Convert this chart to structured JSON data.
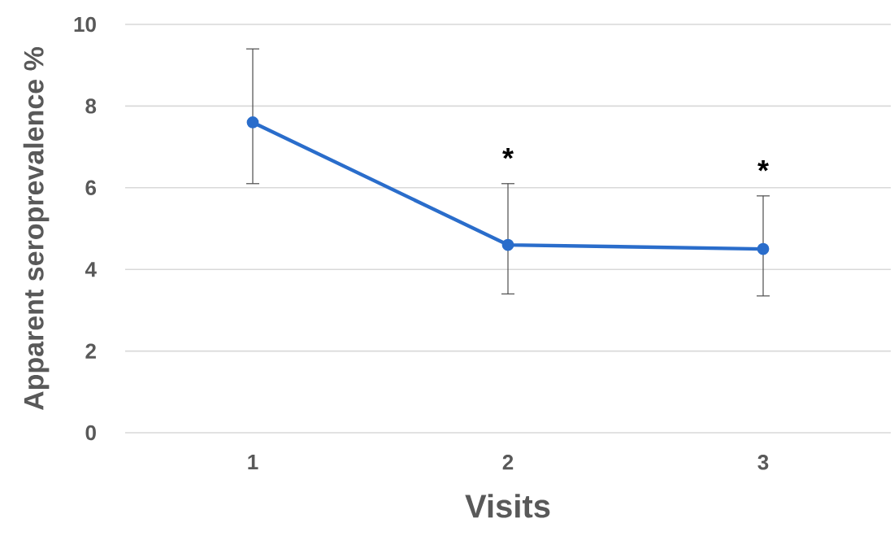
{
  "chart_data": {
    "type": "line",
    "xlabel": "Visits",
    "ylabel": "Apparent seroprevalence %",
    "categories": [
      "1",
      "2",
      "3"
    ],
    "series": [
      {
        "color": "#2a6dcb",
        "values": [
          7.6,
          4.6,
          4.5
        ],
        "errors": [
          [
            6.1,
            9.4
          ],
          [
            3.4,
            6.1
          ],
          [
            3.35,
            5.8
          ]
        ]
      }
    ],
    "ylim": [
      0,
      10
    ],
    "yticks": [
      0,
      2,
      4,
      6,
      8,
      10
    ],
    "grid": "y",
    "marker": "circle",
    "line_style": "solid",
    "annotations": [
      {
        "text": "*",
        "x": "2",
        "y": 6.1
      },
      {
        "text": "*",
        "x": "3",
        "y": 5.8
      }
    ]
  }
}
